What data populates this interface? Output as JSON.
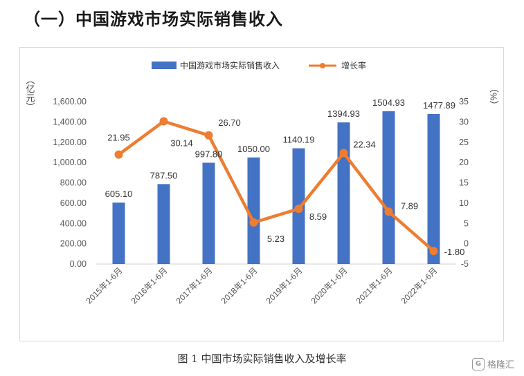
{
  "heading": "（一）中国游戏市场实际销售收入",
  "caption": "图 1  中国市场实际销售收入及增长率",
  "watermark": "格隆汇",
  "chart_data": {
    "type": "bar+line",
    "categories": [
      "2015年1-6月",
      "2016年1-6月",
      "2017年1-6月",
      "2018年1-6月",
      "2019年1-6月",
      "2020年1-6月",
      "2021年1-6月",
      "2022年1-6月"
    ],
    "series": [
      {
        "name": "中国游戏市场实际销售收入",
        "type": "bar",
        "axis": "left",
        "color": "#4472C4",
        "values": [
          605.1,
          787.5,
          997.8,
          1050.0,
          1140.19,
          1394.93,
          1504.93,
          1477.89
        ],
        "labels": [
          "605.10",
          "787.50",
          "997.80",
          "1050.00",
          "1140.19",
          "1394.93",
          "1504.93",
          "1477.89"
        ]
      },
      {
        "name": "增长率",
        "type": "line",
        "axis": "right",
        "color": "#ED7D31",
        "values": [
          21.95,
          30.14,
          26.7,
          5.23,
          8.59,
          22.34,
          7.89,
          -1.8
        ],
        "labels": [
          "21.95",
          "30.14",
          "26.70",
          "5.23",
          "8.59",
          "22.34",
          "7.89",
          "-1.80"
        ]
      }
    ],
    "ylabel_left": "（亿元）",
    "ylabel_right": "（%）",
    "ylim_left": [
      0,
      1600
    ],
    "yticks_left": [
      "0.00",
      "200.00",
      "400.00",
      "600.00",
      "800.00",
      "1,000.00",
      "1,200.00",
      "1,400.00",
      "1,600.00"
    ],
    "ylim_right": [
      -5,
      35
    ],
    "yticks_right": [
      "-5",
      "0",
      "5",
      "10",
      "15",
      "20",
      "25",
      "30",
      "35"
    ],
    "grid": false,
    "legend_position": "top-center"
  }
}
